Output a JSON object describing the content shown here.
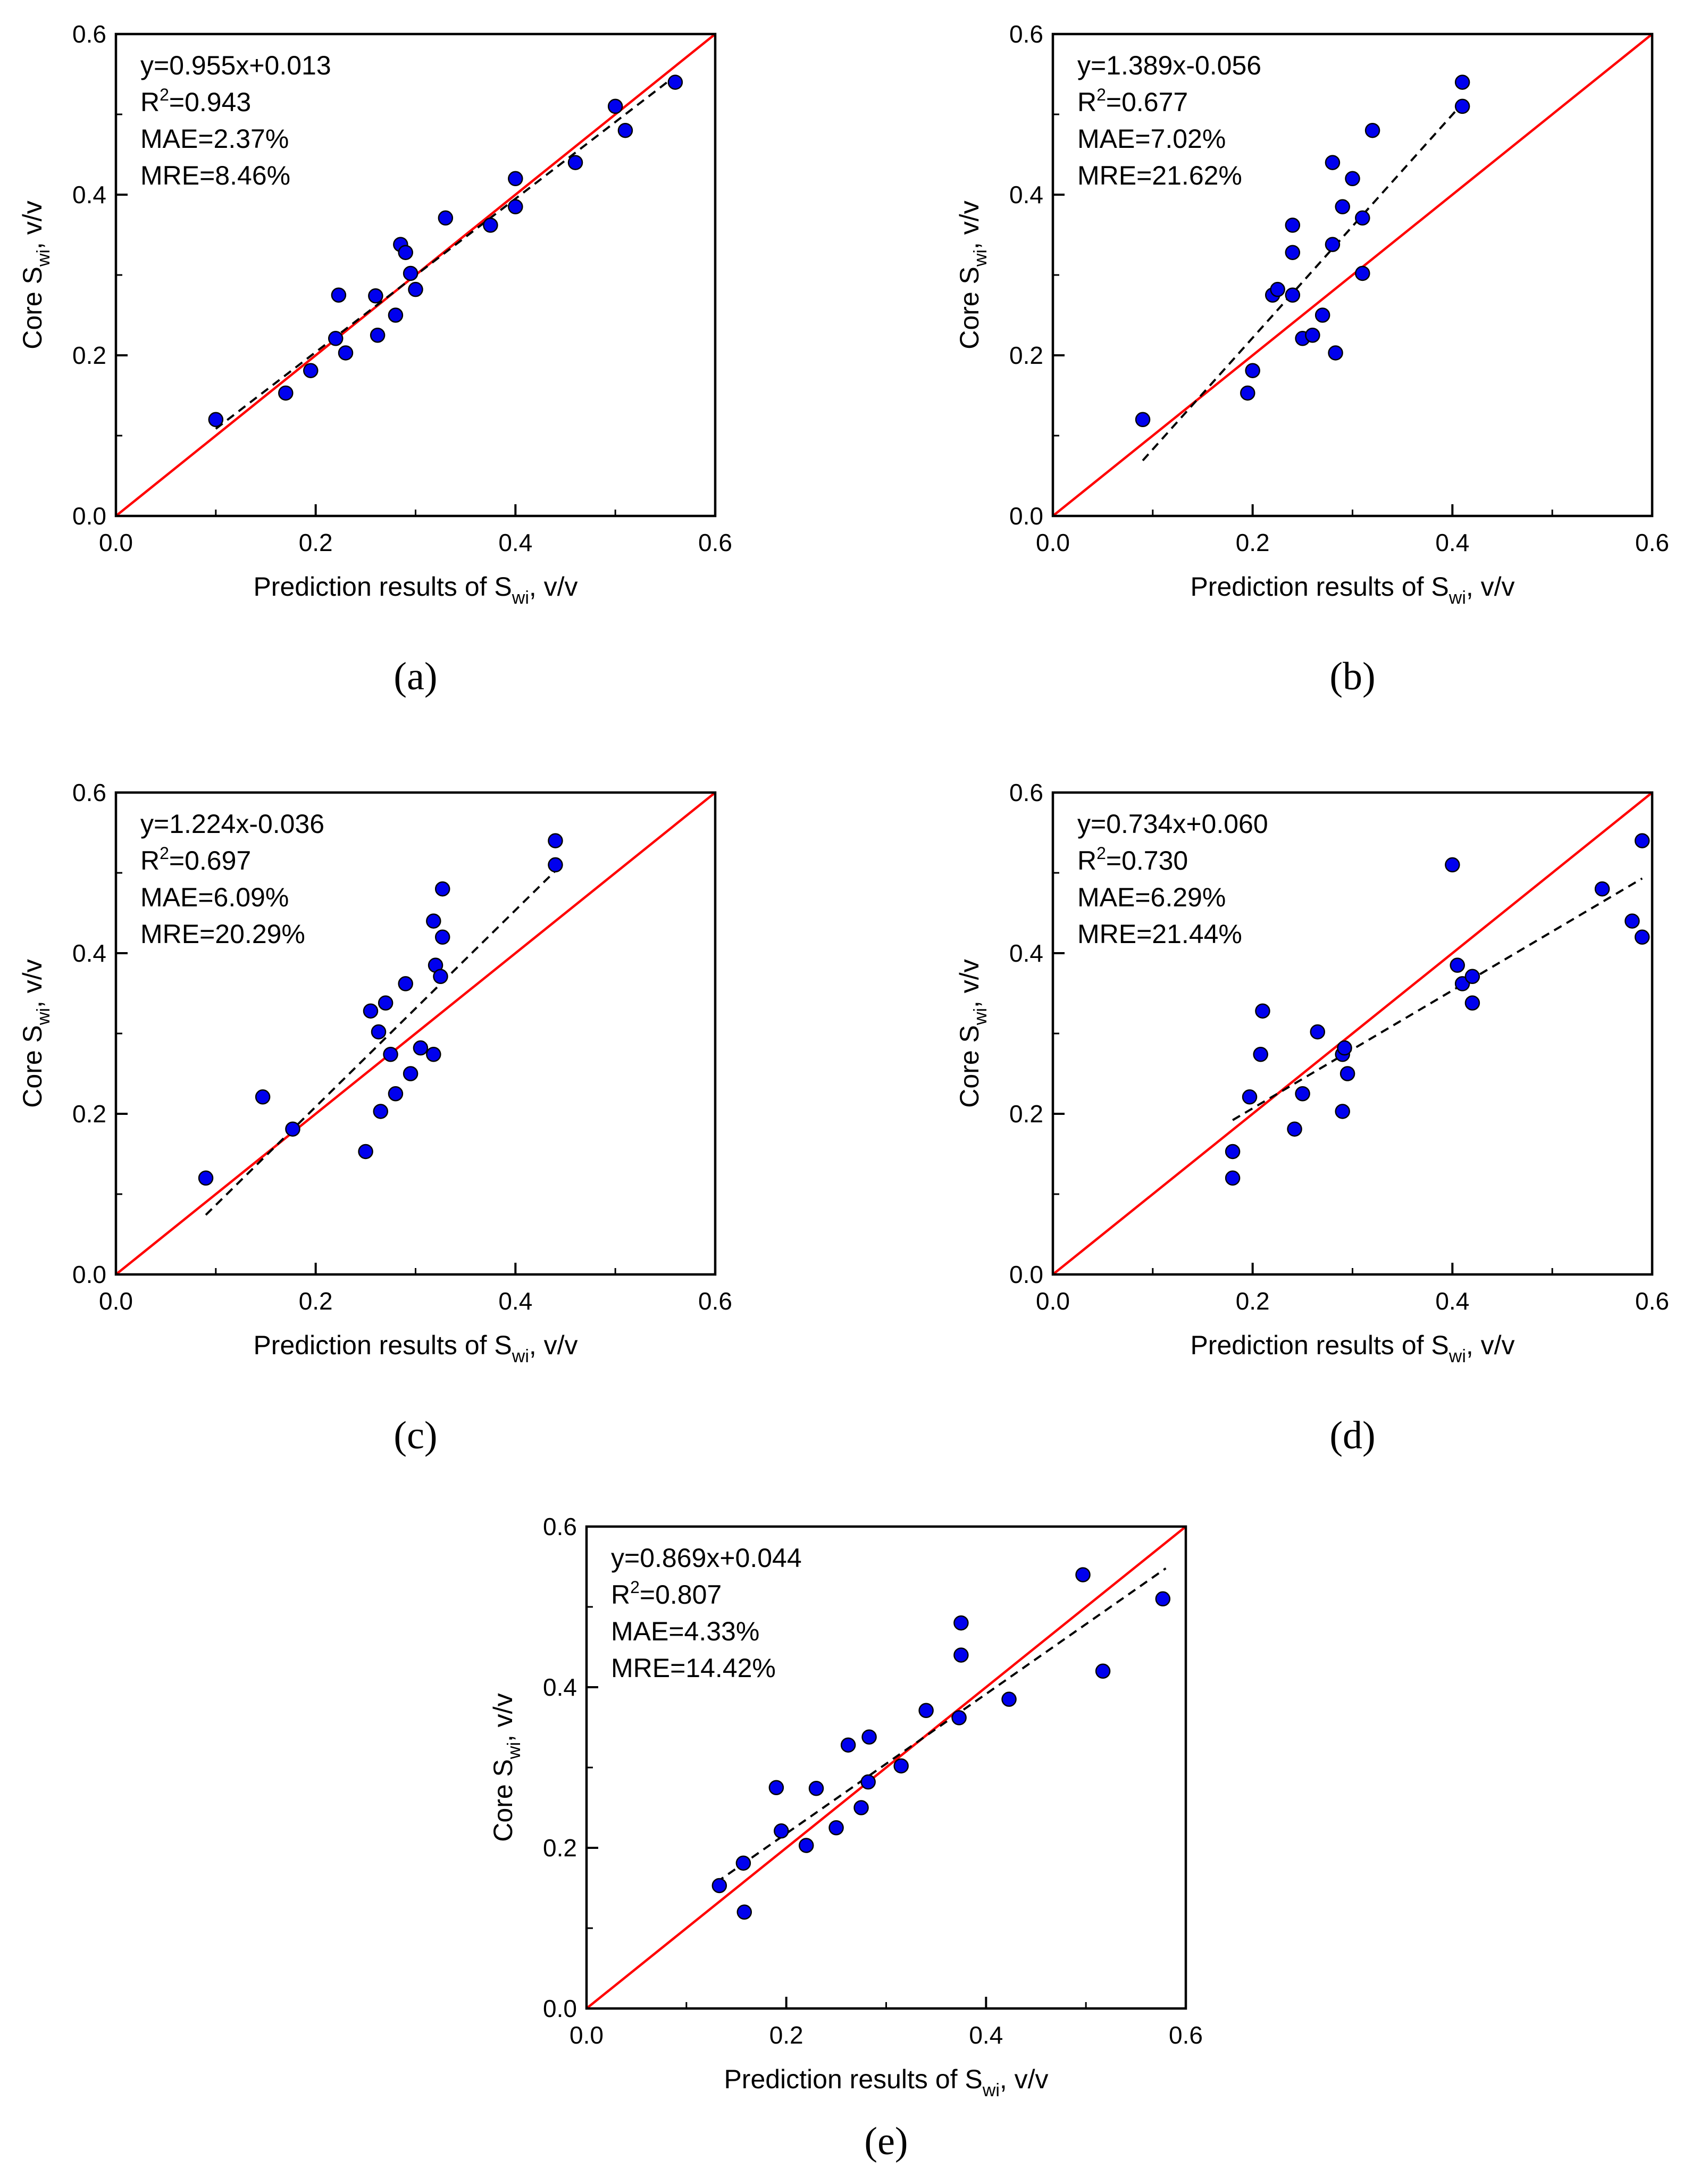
{
  "figure": {
    "panel_labels": [
      "(a)",
      "(b)",
      "(c)",
      "(d)",
      "(e)"
    ],
    "colors": {
      "points": "#0000ee",
      "point_edge": "#000000",
      "one_to_one_line": "#ff0000",
      "fit_line": "#000000",
      "axes": "#000000"
    }
  },
  "chart_data": [
    {
      "panel": "(a)",
      "type": "scatter",
      "xlabel": "Prediction results of S",
      "xlabel_sub": "wi",
      "xlabel_suffix": ", v/v",
      "ylabel": "Core S",
      "ylabel_sub": "wi",
      "ylabel_suffix": ", v/v",
      "xlim": [
        0.0,
        0.6
      ],
      "ylim": [
        0.0,
        0.6
      ],
      "xticks": [
        "0.0",
        "0.2",
        "0.4",
        "0.6"
      ],
      "yticks": [
        "0.0",
        "0.2",
        "0.4",
        "0.6"
      ],
      "grid": false,
      "annotations": [
        "y=0.955x+0.013",
        "R",
        "=0.943",
        "MAE=2.37%",
        "MRE=8.46%"
      ],
      "fit": {
        "slope": 0.955,
        "intercept": 0.013,
        "x_range": [
          0.1,
          0.56
        ]
      },
      "identity_line": true,
      "points": [
        [
          0.1,
          0.12
        ],
        [
          0.17,
          0.153
        ],
        [
          0.195,
          0.181
        ],
        [
          0.22,
          0.221
        ],
        [
          0.223,
          0.275
        ],
        [
          0.23,
          0.203
        ],
        [
          0.26,
          0.274
        ],
        [
          0.262,
          0.225
        ],
        [
          0.28,
          0.25
        ],
        [
          0.285,
          0.338
        ],
        [
          0.29,
          0.328
        ],
        [
          0.295,
          0.302
        ],
        [
          0.3,
          0.282
        ],
        [
          0.33,
          0.371
        ],
        [
          0.375,
          0.362
        ],
        [
          0.4,
          0.42
        ],
        [
          0.4,
          0.385
        ],
        [
          0.46,
          0.44
        ],
        [
          0.5,
          0.51
        ],
        [
          0.51,
          0.48
        ],
        [
          0.56,
          0.54
        ]
      ]
    },
    {
      "panel": "(b)",
      "type": "scatter",
      "xlabel": "Prediction results of S",
      "xlabel_sub": "wi",
      "xlabel_suffix": ", v/v",
      "ylabel": "Core S",
      "ylabel_sub": "wi",
      "ylabel_suffix": ", v/v",
      "xlim": [
        0.0,
        0.6
      ],
      "ylim": [
        0.0,
        0.6
      ],
      "xticks": [
        "0.0",
        "0.2",
        "0.4",
        "0.6"
      ],
      "yticks": [
        "0.0",
        "0.2",
        "0.4",
        "0.6"
      ],
      "grid": false,
      "annotations": [
        "y=1.389x-0.056",
        "R",
        "=0.677",
        "MAE=7.02%",
        "MRE=21.62%"
      ],
      "fit": {
        "slope": 1.389,
        "intercept": -0.056,
        "x_range": [
          0.09,
          0.41
        ]
      },
      "identity_line": true,
      "points": [
        [
          0.09,
          0.12
        ],
        [
          0.195,
          0.153
        ],
        [
          0.2,
          0.181
        ],
        [
          0.22,
          0.275
        ],
        [
          0.225,
          0.282
        ],
        [
          0.24,
          0.275
        ],
        [
          0.24,
          0.328
        ],
        [
          0.24,
          0.362
        ],
        [
          0.25,
          0.221
        ],
        [
          0.26,
          0.225
        ],
        [
          0.27,
          0.25
        ],
        [
          0.28,
          0.44
        ],
        [
          0.28,
          0.338
        ],
        [
          0.283,
          0.203
        ],
        [
          0.29,
          0.385
        ],
        [
          0.3,
          0.42
        ],
        [
          0.31,
          0.371
        ],
        [
          0.31,
          0.302
        ],
        [
          0.32,
          0.48
        ],
        [
          0.41,
          0.54
        ],
        [
          0.41,
          0.51
        ]
      ]
    },
    {
      "panel": "(c)",
      "type": "scatter",
      "xlabel": "Prediction results of S",
      "xlabel_sub": "wi",
      "xlabel_suffix": ", v/v",
      "ylabel": "Core S",
      "ylabel_sub": "wi",
      "ylabel_suffix": ", v/v",
      "xlim": [
        0.0,
        0.6
      ],
      "ylim": [
        0.0,
        0.6
      ],
      "xticks": [
        "0.0",
        "0.2",
        "0.4",
        "0.6"
      ],
      "yticks": [
        "0.0",
        "0.2",
        "0.4",
        "0.6"
      ],
      "grid": false,
      "annotations": [
        "y=1.224x-0.036",
        "R",
        "=0.697",
        "MAE=6.09%",
        "MRE=20.29%"
      ],
      "fit": {
        "slope": 1.224,
        "intercept": -0.036,
        "x_range": [
          0.09,
          0.44
        ]
      },
      "identity_line": true,
      "points": [
        [
          0.09,
          0.12
        ],
        [
          0.147,
          0.221
        ],
        [
          0.177,
          0.181
        ],
        [
          0.25,
          0.153
        ],
        [
          0.255,
          0.328
        ],
        [
          0.263,
          0.302
        ],
        [
          0.265,
          0.203
        ],
        [
          0.27,
          0.338
        ],
        [
          0.275,
          0.274
        ],
        [
          0.28,
          0.225
        ],
        [
          0.29,
          0.362
        ],
        [
          0.295,
          0.25
        ],
        [
          0.305,
          0.282
        ],
        [
          0.318,
          0.274
        ],
        [
          0.318,
          0.44
        ],
        [
          0.32,
          0.385
        ],
        [
          0.325,
          0.371
        ],
        [
          0.327,
          0.42
        ],
        [
          0.327,
          0.48
        ],
        [
          0.44,
          0.54
        ],
        [
          0.44,
          0.51
        ]
      ]
    },
    {
      "panel": "(d)",
      "type": "scatter",
      "xlabel": "Prediction results of S",
      "xlabel_sub": "wi",
      "xlabel_suffix": ", v/v",
      "ylabel": "Core S",
      "ylabel_sub": "wi",
      "ylabel_suffix": ", v/v",
      "xlim": [
        0.0,
        0.6
      ],
      "ylim": [
        0.0,
        0.6
      ],
      "xticks": [
        "0.0",
        "0.2",
        "0.4",
        "0.6"
      ],
      "yticks": [
        "0.0",
        "0.2",
        "0.4",
        "0.6"
      ],
      "grid": false,
      "annotations": [
        "y=0.734x+0.060",
        "R",
        "=0.730",
        "MAE=6.29%",
        "MRE=21.44%"
      ],
      "fit": {
        "slope": 0.734,
        "intercept": 0.06,
        "x_range": [
          0.18,
          0.59
        ]
      },
      "identity_line": true,
      "points": [
        [
          0.18,
          0.12
        ],
        [
          0.18,
          0.153
        ],
        [
          0.197,
          0.221
        ],
        [
          0.208,
          0.274
        ],
        [
          0.21,
          0.328
        ],
        [
          0.242,
          0.181
        ],
        [
          0.25,
          0.225
        ],
        [
          0.265,
          0.302
        ],
        [
          0.29,
          0.274
        ],
        [
          0.29,
          0.203
        ],
        [
          0.292,
          0.282
        ],
        [
          0.295,
          0.25
        ],
        [
          0.4,
          0.51
        ],
        [
          0.405,
          0.385
        ],
        [
          0.41,
          0.362
        ],
        [
          0.42,
          0.371
        ],
        [
          0.42,
          0.338
        ],
        [
          0.55,
          0.48
        ],
        [
          0.58,
          0.44
        ],
        [
          0.59,
          0.54
        ],
        [
          0.59,
          0.42
        ]
      ]
    },
    {
      "panel": "(e)",
      "type": "scatter",
      "xlabel": "Prediction results of S",
      "xlabel_sub": "wi",
      "xlabel_suffix": ", v/v",
      "ylabel": "Core S",
      "ylabel_sub": "wi",
      "ylabel_suffix": ", v/v",
      "xlim": [
        0.0,
        0.6
      ],
      "ylim": [
        0.0,
        0.6
      ],
      "xticks": [
        "0.0",
        "0.2",
        "0.4",
        "0.6"
      ],
      "yticks": [
        "0.0",
        "0.2",
        "0.4",
        "0.6"
      ],
      "grid": false,
      "annotations": [
        "y=0.869x+0.044",
        "R",
        "=0.807",
        "MAE=4.33%",
        "MRE=14.42%"
      ],
      "fit": {
        "slope": 0.869,
        "intercept": 0.044,
        "x_range": [
          0.13,
          0.58
        ]
      },
      "identity_line": true,
      "points": [
        [
          0.133,
          0.153
        ],
        [
          0.157,
          0.181
        ],
        [
          0.158,
          0.12
        ],
        [
          0.19,
          0.275
        ],
        [
          0.195,
          0.221
        ],
        [
          0.22,
          0.203
        ],
        [
          0.23,
          0.274
        ],
        [
          0.25,
          0.225
        ],
        [
          0.262,
          0.328
        ],
        [
          0.275,
          0.25
        ],
        [
          0.282,
          0.282
        ],
        [
          0.283,
          0.338
        ],
        [
          0.315,
          0.302
        ],
        [
          0.34,
          0.371
        ],
        [
          0.373,
          0.362
        ],
        [
          0.375,
          0.44
        ],
        [
          0.375,
          0.48
        ],
        [
          0.423,
          0.385
        ],
        [
          0.497,
          0.54
        ],
        [
          0.517,
          0.42
        ],
        [
          0.577,
          0.51
        ]
      ]
    }
  ]
}
